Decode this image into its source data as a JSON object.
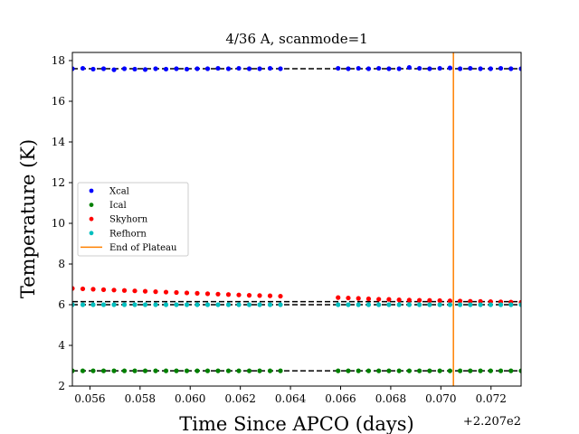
{
  "chart_data": {
    "type": "scatter",
    "title": "4/36 A, scanmode=1",
    "xlabel": "Time Since APCO (days)",
    "ylabel": "Temperature (K)",
    "x_offset_label": "+2.207e2",
    "xlim": [
      0.0553,
      0.0732
    ],
    "ylim": [
      2,
      18.4
    ],
    "xticks": [
      0.056,
      0.058,
      0.06,
      0.062,
      0.064,
      0.066,
      0.068,
      0.07,
      0.072
    ],
    "xtick_labels": [
      "0.056",
      "0.058",
      "0.060",
      "0.062",
      "0.064",
      "0.066",
      "0.068",
      "0.070",
      "0.072"
    ],
    "yticks": [
      2,
      4,
      6,
      8,
      10,
      12,
      14,
      16,
      18
    ],
    "ytick_labels": [
      "2",
      "4",
      "6",
      "8",
      "10",
      "12",
      "14",
      "16",
      "18"
    ],
    "grid": false,
    "legend_position": "center-left",
    "segments": [
      {
        "x_start": 0.0553,
        "x_end": 0.0636,
        "n": 21
      },
      {
        "x_start": 0.0659,
        "x_end": 0.0732,
        "n": 19
      }
    ],
    "series": [
      {
        "name": "Xcal",
        "color": "#0000ff",
        "values": [
          17.6,
          17.62,
          17.58,
          17.6,
          17.55,
          17.6,
          17.58,
          17.56,
          17.6,
          17.58,
          17.6,
          17.58,
          17.6,
          17.6,
          17.62,
          17.6,
          17.62,
          17.6,
          17.6,
          17.62,
          17.6,
          17.62,
          17.6,
          17.62,
          17.6,
          17.62,
          17.6,
          17.6,
          17.66,
          17.62,
          17.6,
          17.62,
          17.64,
          17.6,
          17.62,
          17.6,
          17.6,
          17.62,
          17.6,
          17.6
        ]
      },
      {
        "name": "Ical",
        "color": "#008000",
        "values": [
          2.75,
          2.75,
          2.75,
          2.75,
          2.75,
          2.75,
          2.75,
          2.75,
          2.75,
          2.75,
          2.75,
          2.75,
          2.75,
          2.75,
          2.75,
          2.75,
          2.75,
          2.75,
          2.75,
          2.75,
          2.75,
          2.75,
          2.75,
          2.75,
          2.75,
          2.75,
          2.75,
          2.75,
          2.75,
          2.75,
          2.75,
          2.75,
          2.75,
          2.75,
          2.75,
          2.75,
          2.75,
          2.75,
          2.75,
          2.75
        ]
      },
      {
        "name": "Skyhorn",
        "color": "#ff0000",
        "values": [
          6.8,
          6.78,
          6.76,
          6.74,
          6.72,
          6.7,
          6.68,
          6.66,
          6.64,
          6.62,
          6.6,
          6.58,
          6.56,
          6.54,
          6.52,
          6.5,
          6.48,
          6.46,
          6.45,
          6.44,
          6.42,
          6.35,
          6.33,
          6.31,
          6.29,
          6.27,
          6.26,
          6.24,
          6.23,
          6.22,
          6.21,
          6.2,
          6.19,
          6.18,
          6.17,
          6.16,
          6.15,
          6.14,
          6.13,
          6.12
        ]
      },
      {
        "name": "Refhorn",
        "color": "#00bfbf",
        "values": [
          6.0,
          6.0,
          6.0,
          6.0,
          6.0,
          6.0,
          6.0,
          6.0,
          6.0,
          6.0,
          6.0,
          6.0,
          6.0,
          6.0,
          6.0,
          6.0,
          6.0,
          6.0,
          6.0,
          6.0,
          6.0,
          6.0,
          6.0,
          6.0,
          6.0,
          6.0,
          6.0,
          6.0,
          6.0,
          6.0,
          6.0,
          6.0,
          6.0,
          6.0,
          6.0,
          6.0,
          6.0,
          6.0,
          6.0,
          6.0
        ]
      }
    ],
    "reference_lines": [
      17.6,
      2.75,
      6.15,
      6.0
    ],
    "end_of_plateau": {
      "name": "End of Plateau",
      "x": 0.0705,
      "color": "#ff8000"
    }
  }
}
